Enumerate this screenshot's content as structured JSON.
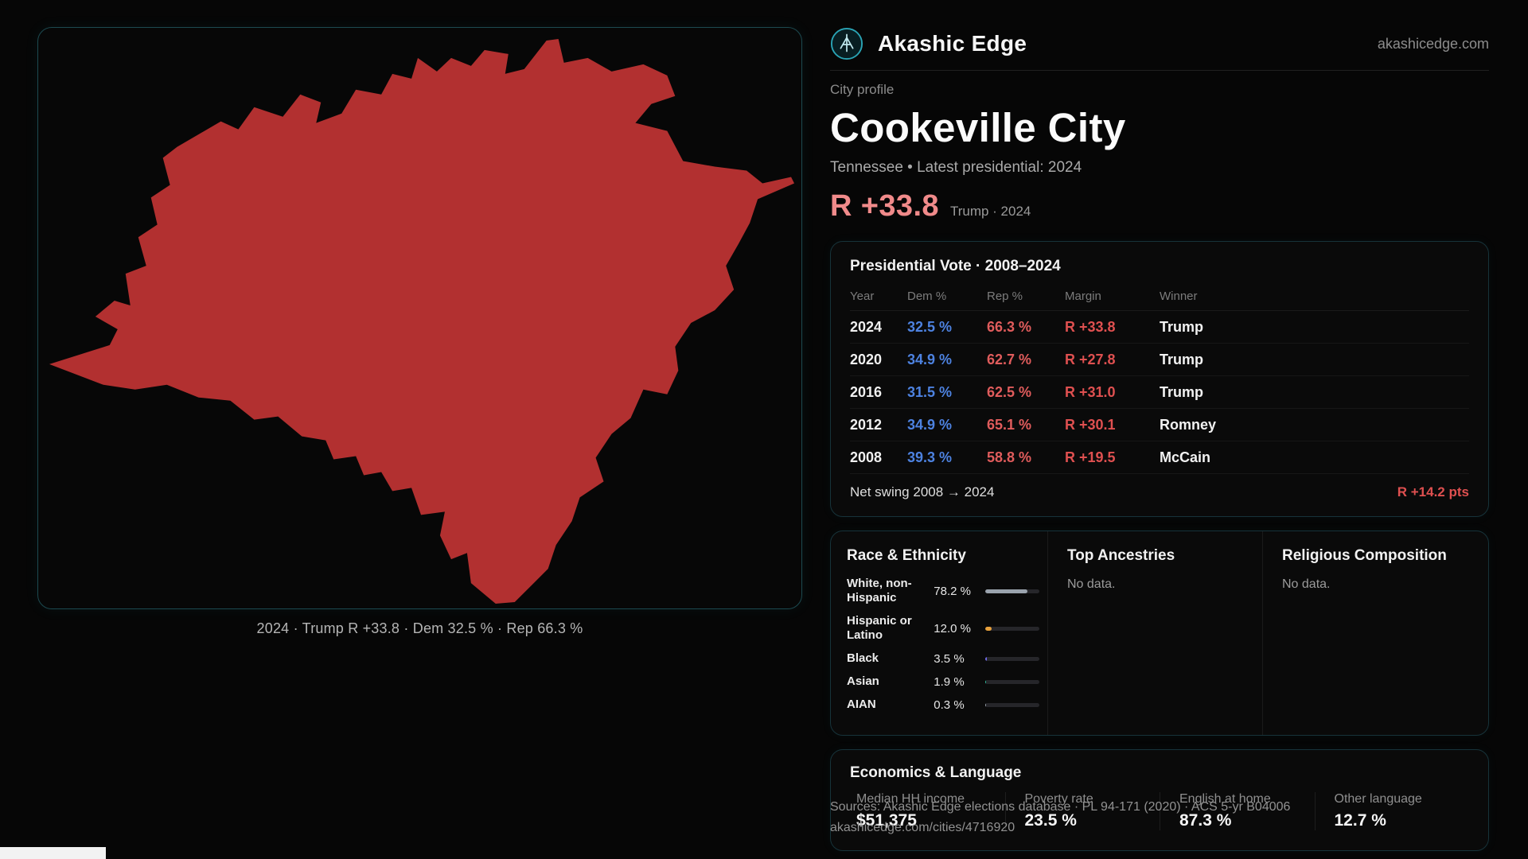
{
  "site": {
    "brand": "Akashic Edge",
    "domain": "akashicedge.com"
  },
  "profile": {
    "kicker": "City profile",
    "city": "Cookeville City",
    "subtitle": "Tennessee • Latest presidential: 2024",
    "headline_margin": "R +33.8",
    "headline_note": "Trump · 2024"
  },
  "map": {
    "caption": "2024 · Trump R +33.8 · Dem 32.5 % · Rep 66.3 %"
  },
  "vote_table": {
    "title": "Presidential Vote · 2008–2024",
    "columns": [
      "Year",
      "Dem %",
      "Rep %",
      "Margin",
      "Winner"
    ],
    "rows": [
      {
        "year": "2024",
        "dem": "32.5 %",
        "rep": "66.3 %",
        "margin": "R +33.8",
        "winner": "Trump"
      },
      {
        "year": "2020",
        "dem": "34.9 %",
        "rep": "62.7 %",
        "margin": "R +27.8",
        "winner": "Trump"
      },
      {
        "year": "2016",
        "dem": "31.5 %",
        "rep": "62.5 %",
        "margin": "R +31.0",
        "winner": "Trump"
      },
      {
        "year": "2012",
        "dem": "34.9 %",
        "rep": "65.1 %",
        "margin": "R +30.1",
        "winner": "Romney"
      },
      {
        "year": "2008",
        "dem": "39.3 %",
        "rep": "58.8 %",
        "margin": "R +19.5",
        "winner": "McCain"
      }
    ],
    "footer_label": "Net swing 2008 → 2024",
    "footer_value": "R +14.2 pts"
  },
  "demographics": {
    "race_title": "Race & Ethnicity",
    "race_rows": [
      {
        "label": "White, non-Hispanic",
        "value": "78.2 %",
        "pct": 78.2,
        "color": "#9aa3ad"
      },
      {
        "label": "Hispanic or Latino",
        "value": "12.0 %",
        "pct": 12.0,
        "color": "#e8a13c"
      },
      {
        "label": "Black",
        "value": "3.5 %",
        "pct": 3.5,
        "color": "#6f6ae8"
      },
      {
        "label": "Asian",
        "value": "1.9 %",
        "pct": 1.9,
        "color": "#2fbf9f"
      },
      {
        "label": "AIAN",
        "value": "0.3 %",
        "pct": 0.3,
        "color": "#9aa3ad"
      }
    ],
    "ancestries_title": "Top Ancestries",
    "ancestries_empty": "No data.",
    "religion_title": "Religious Composition",
    "religion_empty": "No data."
  },
  "economics": {
    "title": "Economics & Language",
    "stats": [
      {
        "label": "Median HH income",
        "value": "$51,375"
      },
      {
        "label": "Poverty rate",
        "value": "23.5 %"
      },
      {
        "label": "English at home",
        "value": "87.3 %"
      },
      {
        "label": "Other language",
        "value": "12.7 %"
      }
    ]
  },
  "footer": {
    "sources": "Sources: Akashic Edge elections database · PL 94-171 (2020) · ACS 5-yr B04006",
    "permalink": "akashicedge.com/cities/4716920"
  },
  "colors": {
    "accent": "#2aa4b5",
    "dem": "#4d82e0",
    "rep": "#e05c5c",
    "marginc": "#df5050",
    "headline": "#f08a8a",
    "mapfill": "#b23030"
  }
}
